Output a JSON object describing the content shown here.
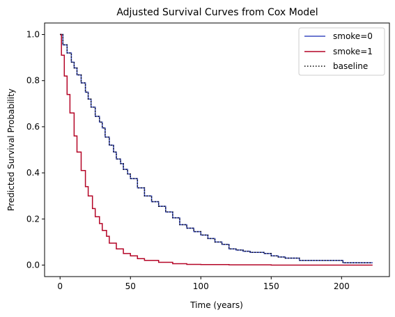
{
  "chart_data": {
    "type": "line",
    "title": "Adjusted Survival Curves from Cox Model",
    "xlabel": "Time (years)",
    "ylabel": "Predicted Survival Probability",
    "xlim": [
      -11,
      234
    ],
    "ylim": [
      -0.05,
      1.05
    ],
    "xticks": [
      0,
      50,
      100,
      150,
      200
    ],
    "yticks": [
      0.0,
      0.2,
      0.4,
      0.6,
      0.8,
      1.0
    ],
    "xtick_labels": [
      "0",
      "50",
      "100",
      "150",
      "200"
    ],
    "ytick_labels": [
      "0.0",
      "0.2",
      "0.4",
      "0.6",
      "0.8",
      "1.0"
    ],
    "grid": false,
    "legend_position": "upper right",
    "series": [
      {
        "name": "smoke=0",
        "color": "#3b4cc0",
        "style": "solid",
        "x": [
          0,
          2,
          5,
          8,
          10,
          12,
          15,
          18,
          20,
          22,
          25,
          28,
          30,
          32,
          35,
          38,
          40,
          43,
          45,
          48,
          50,
          55,
          60,
          65,
          70,
          75,
          80,
          85,
          90,
          95,
          100,
          105,
          110,
          115,
          120,
          125,
          130,
          135,
          140,
          145,
          150,
          155,
          160,
          170,
          180,
          190,
          200,
          201,
          210,
          222
        ],
        "y": [
          1.0,
          0.955,
          0.92,
          0.88,
          0.855,
          0.825,
          0.79,
          0.75,
          0.72,
          0.685,
          0.645,
          0.62,
          0.595,
          0.555,
          0.52,
          0.49,
          0.46,
          0.44,
          0.415,
          0.395,
          0.375,
          0.335,
          0.3,
          0.275,
          0.255,
          0.23,
          0.205,
          0.175,
          0.16,
          0.145,
          0.13,
          0.115,
          0.1,
          0.09,
          0.07,
          0.065,
          0.06,
          0.055,
          0.055,
          0.05,
          0.04,
          0.035,
          0.03,
          0.02,
          0.02,
          0.02,
          0.02,
          0.01,
          0.01,
          0.01
        ]
      },
      {
        "name": "smoke=1",
        "color": "#b40426",
        "style": "solid",
        "x": [
          0,
          1,
          3,
          5,
          7,
          10,
          12,
          15,
          18,
          20,
          23,
          25,
          28,
          30,
          33,
          35,
          40,
          45,
          50,
          55,
          60,
          70,
          80,
          90,
          100,
          120,
          150,
          180,
          222
        ],
        "y": [
          1.0,
          0.91,
          0.82,
          0.74,
          0.66,
          0.56,
          0.49,
          0.41,
          0.34,
          0.3,
          0.245,
          0.21,
          0.18,
          0.15,
          0.125,
          0.095,
          0.07,
          0.05,
          0.04,
          0.028,
          0.02,
          0.012,
          0.006,
          0.003,
          0.002,
          0.001,
          0.0,
          0.0,
          0.0
        ]
      },
      {
        "name": "baseline",
        "color": "#000000",
        "style": "dotted",
        "same_as": "smoke=0"
      }
    ]
  }
}
